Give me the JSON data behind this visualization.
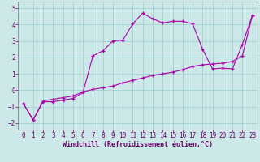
{
  "xlabel": "Windchill (Refroidissement éolien,°C)",
  "background_color": "#cce8e8",
  "line_color": "#aa00aa",
  "grid_color": "#99cccc",
  "xlim_min": -0.5,
  "xlim_max": 23.5,
  "ylim_min": -2.4,
  "ylim_max": 5.4,
  "xticks": [
    0,
    1,
    2,
    3,
    4,
    5,
    6,
    7,
    8,
    9,
    10,
    11,
    12,
    13,
    14,
    15,
    16,
    17,
    18,
    19,
    20,
    21,
    22,
    23
  ],
  "yticks": [
    -2,
    -1,
    0,
    1,
    2,
    3,
    4,
    5
  ],
  "series1_x": [
    0,
    1,
    2,
    3,
    4,
    5,
    6,
    7,
    8,
    9,
    10,
    11,
    12,
    13,
    14,
    15,
    16,
    17,
    18,
    19,
    20,
    21,
    22,
    23
  ],
  "series1_y": [
    -0.8,
    -1.8,
    -0.7,
    -0.7,
    -0.6,
    -0.5,
    -0.15,
    2.1,
    2.4,
    3.0,
    3.05,
    4.05,
    4.7,
    4.35,
    4.1,
    4.2,
    4.2,
    4.05,
    2.5,
    1.3,
    1.35,
    1.3,
    2.8,
    4.55
  ],
  "series2_x": [
    0,
    1,
    2,
    3,
    4,
    5,
    6,
    7,
    8,
    9,
    10,
    11,
    12,
    13,
    14,
    15,
    16,
    17,
    18,
    19,
    20,
    21,
    22,
    23
  ],
  "series2_y": [
    -0.8,
    -1.8,
    -0.65,
    -0.55,
    -0.45,
    -0.35,
    -0.1,
    0.05,
    0.15,
    0.25,
    0.45,
    0.6,
    0.75,
    0.9,
    1.0,
    1.1,
    1.25,
    1.45,
    1.55,
    1.6,
    1.65,
    1.75,
    2.1,
    4.55
  ],
  "xlabel_fontsize": 6,
  "tick_fontsize": 5.5,
  "tick_color": "#660066",
  "label_color": "#660066"
}
